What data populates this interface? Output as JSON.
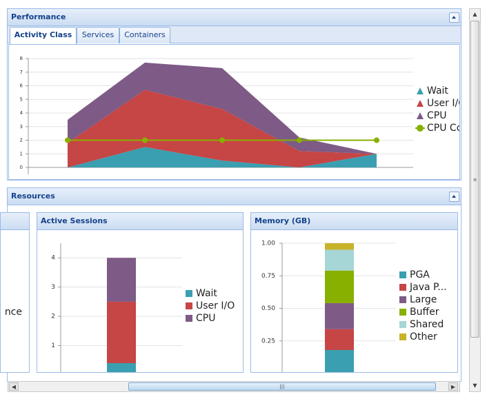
{
  "performance": {
    "title": "Performance",
    "tabs": [
      "Activity Class",
      "Services",
      "Containers"
    ]
  },
  "resources": {
    "title": "Resources",
    "partial_panel_text": "nce"
  },
  "chart_data": [
    {
      "type": "area",
      "stacked": true,
      "categories": [
        null,
        null,
        null,
        null,
        null
      ],
      "series": [
        {
          "name": "Wait",
          "color": "#3a9fb0",
          "values": [
            0,
            1.5,
            0.5,
            0,
            1
          ]
        },
        {
          "name": "User I/O",
          "color": "#c64545",
          "values": [
            1.8,
            4.2,
            3.8,
            1.2,
            0
          ]
        },
        {
          "name": "CPU",
          "color": "#7e5a86",
          "values": [
            1.7,
            2.0,
            3.0,
            1.0,
            0
          ]
        },
        {
          "name": "CPU Cores",
          "type": "line",
          "color": "#88b000",
          "values": [
            2,
            2,
            2,
            2,
            2
          ]
        }
      ],
      "ylim": [
        0,
        8
      ],
      "yticks": [
        0,
        1,
        2,
        3,
        4,
        5,
        6,
        7,
        8
      ],
      "grid": true
    },
    {
      "type": "bar",
      "stacked": true,
      "title": "Active Sessions",
      "categories": [
        null
      ],
      "series": [
        {
          "name": "Wait",
          "color": "#3a9fb0",
          "values": [
            0.4
          ]
        },
        {
          "name": "User I/O",
          "color": "#c64545",
          "values": [
            2.1
          ]
        },
        {
          "name": "CPU",
          "color": "#7e5a86",
          "values": [
            1.5
          ]
        }
      ],
      "ylim": [
        0,
        4.5
      ],
      "yticks": [
        1,
        2,
        3,
        4
      ],
      "grid": true
    },
    {
      "type": "bar",
      "stacked": true,
      "title": "Memory (GB)",
      "categories": [
        null
      ],
      "series": [
        {
          "name": "PGA",
          "color": "#3a9fb0",
          "values": [
            0.18
          ]
        },
        {
          "name": "Java P...",
          "color": "#c64545",
          "values": [
            0.16
          ]
        },
        {
          "name": "Large",
          "color": "#7e5a86",
          "values": [
            0.2
          ]
        },
        {
          "name": "Buffer",
          "color": "#88b000",
          "values": [
            0.25
          ]
        },
        {
          "name": "Shared",
          "color": "#a6d6d6",
          "values": [
            0.16
          ]
        },
        {
          "name": "Other",
          "color": "#c8b22a",
          "values": [
            0.05
          ]
        }
      ],
      "ylim": [
        0,
        1
      ],
      "yticks": [
        {
          "value": 0.25,
          "label": "0.25"
        },
        {
          "value": 0.5,
          "label": "0.50"
        },
        {
          "value": 0.75,
          "label": "0.75"
        },
        {
          "value": 1,
          "label": "1.00"
        }
      ],
      "grid": true
    }
  ]
}
